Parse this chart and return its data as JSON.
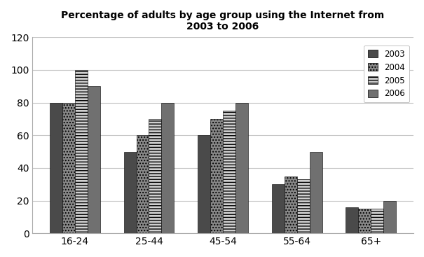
{
  "title": "Percentage of adults by age group using the Internet from\n2003 to 2006",
  "categories": [
    "16-24",
    "25-44",
    "45-54",
    "55-64",
    "65+"
  ],
  "years": [
    "2003",
    "2004",
    "2005",
    "2006"
  ],
  "values": {
    "2003": [
      80,
      50,
      60,
      30,
      16
    ],
    "2004": [
      80,
      60,
      70,
      35,
      15
    ],
    "2005": [
      100,
      70,
      75,
      33,
      15
    ],
    "2006": [
      90,
      80,
      80,
      50,
      20
    ]
  },
  "colors_map": {
    "2003": "#4a4a4a",
    "2004": "#888888",
    "2005": "#d0d0d0",
    "2006": "#707070"
  },
  "hatches_map": {
    "2003": "",
    "2004": "....",
    "2005": "----",
    "2006": "===="
  },
  "ylim": [
    0,
    120
  ],
  "yticks": [
    0,
    20,
    40,
    60,
    80,
    100,
    120
  ],
  "bar_width": 0.17,
  "title_fontsize": 10,
  "background_color": "#ffffff",
  "grid_color": "#c8c8c8",
  "legend_labels": [
    "2003",
    "2004",
    "2005",
    "2006"
  ]
}
